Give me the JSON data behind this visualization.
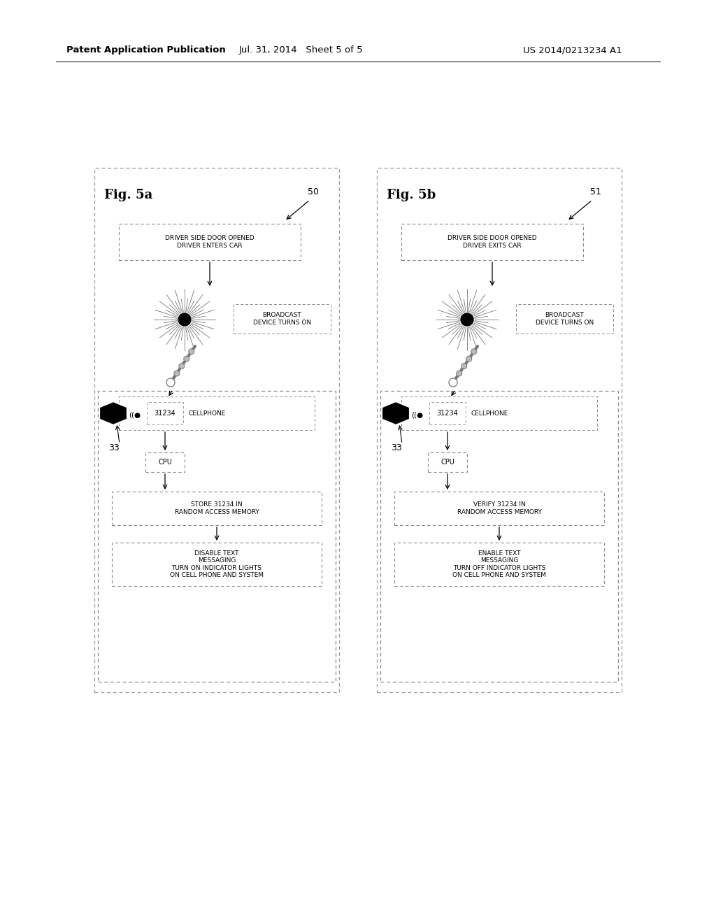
{
  "header_left": "Patent Application Publication",
  "header_mid": "Jul. 31, 2014   Sheet 5 of 5",
  "header_right": "US 2014/0213234 A1",
  "fig_a_label": "Fig. 5a",
  "fig_b_label": "Fig. 5b",
  "fig_a_number": "50",
  "fig_b_number": "51",
  "fig_a_box1": "DRIVER SIDE DOOR OPENED\nDRIVER ENTERS CAR",
  "fig_b_box1": "DRIVER SIDE DOOR OPENED\nDRIVER EXITS CAR",
  "broadcast_label": "BROADCAST\nDEVICE TURNS ON",
  "cellphone_label": "CELLPHONE",
  "cpu_label": "CPU",
  "fig_a_box3": "STORE 31234 IN\nRANDOM ACCESS MEMORY",
  "fig_b_box3": "VERIFY 31234 IN\nRANDOM ACCESS MEMORY",
  "fig_a_box4": "DISABLE TEXT\nMESSAGING\nTURN ON INDICATOR LIGHTS\nON CELL PHONE AND SYSTEM",
  "fig_b_box4": "ENABLE TEXT\nMESSAGING\nTURN OFF INDICATOR LIGHTS\nON CELL PHONE AND SYSTEM",
  "label_33": "33",
  "code_text": "31234",
  "bg_color": "#ffffff"
}
